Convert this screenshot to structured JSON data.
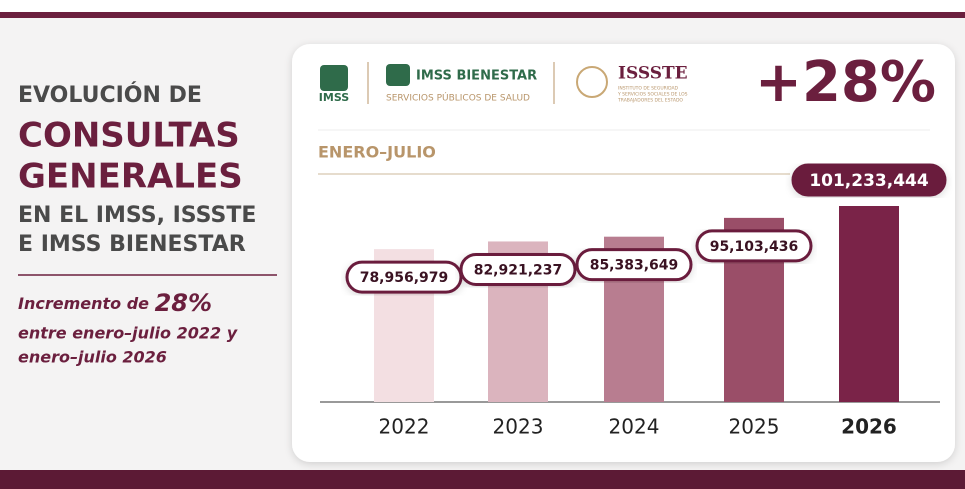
{
  "title": [
    "EVOLUCIÓN DE",
    "CONSULTAS",
    "GENERALES",
    "EN EL IMSS, ISSSTE",
    "E IMSS BIENESTAR"
  ],
  "subtitle": {
    "lead": "Incremento de",
    "highlight": "28%",
    "line2": "entre enero–julio 2022 y",
    "line3": "enero–julio 2026"
  },
  "logos": {
    "imss": "IMSS",
    "bienestar": "IMSS BIENESTAR",
    "bienestar_sub": "SERVICIOS PÚBLICOS DE SALUD",
    "issste": "ISSSTE",
    "issste_sub": [
      "INSTITUTO DE SEGURIDAD",
      "Y SERVICIOS SOCIALES DE LOS",
      "TRABAJADORES DEL ESTADO"
    ]
  },
  "badge": "+28%",
  "chart_data": {
    "type": "bar",
    "period": "ENERO–JULIO",
    "categories": [
      "2022",
      "2023",
      "2024",
      "2025",
      "2026"
    ],
    "values": [
      78956979,
      82921237,
      85383649,
      95103436,
      101233444
    ],
    "value_labels": [
      "78,956,979",
      "82,921,237",
      "85,383,649",
      "95,103,436",
      "101,233,444"
    ],
    "colors": [
      "#f3dfe2",
      "#dbb4be",
      "#b87d90",
      "#9a4e68",
      "#7a2348"
    ]
  }
}
